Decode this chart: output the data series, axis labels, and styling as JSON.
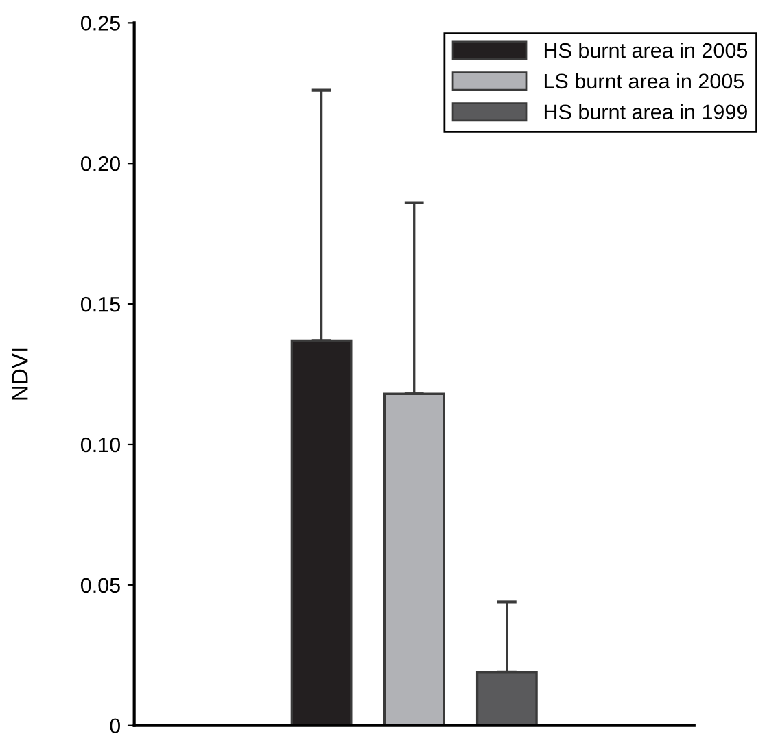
{
  "chart_data": {
    "type": "bar",
    "ylabel": "NDVI",
    "categories": [
      null
    ],
    "series": [
      {
        "name": "HS burnt area in 2005",
        "color": "#231f20",
        "values": [
          0.137
        ],
        "errors": [
          [
            0.137,
            0.226
          ]
        ]
      },
      {
        "name": "LS burnt area in 2005",
        "color": "#b1b2b6",
        "values": [
          0.118
        ],
        "errors": [
          [
            0.118,
            0.186
          ]
        ]
      },
      {
        "name": "HS burnt area in 1999",
        "color": "#5a5a5c",
        "values": [
          0.019
        ],
        "errors": [
          [
            0.019,
            0.044
          ]
        ]
      }
    ],
    "ylim": [
      0,
      0.25
    ],
    "yticks": [
      0,
      0.05,
      {
        "value": 0.1,
        "label": "0.10"
      },
      0.15,
      {
        "value": 0.2,
        "label": "0.20"
      },
      0.25
    ],
    "grid": false,
    "legend": "top right",
    "tick_labels": "y"
  }
}
